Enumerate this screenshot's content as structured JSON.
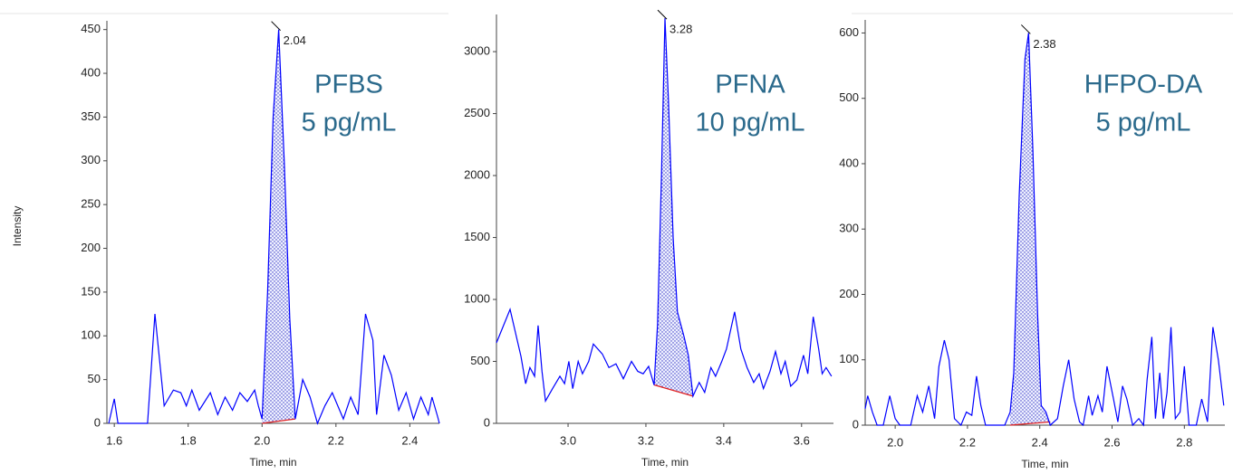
{
  "chart_data": [
    {
      "type": "line",
      "ylabel": "Intensity",
      "xlabel": "Time, min",
      "annotation": [
        "PFBS",
        "5 pg/mL"
      ],
      "x": [
        1.585,
        1.6,
        1.61,
        1.69,
        1.71,
        1.735,
        1.76,
        1.78,
        1.795,
        1.81,
        1.83,
        1.86,
        1.88,
        1.9,
        1.92,
        1.94,
        1.96,
        1.98,
        1.99,
        2.0,
        2.015,
        2.03,
        2.045,
        2.06,
        2.075,
        2.09,
        2.11,
        2.13,
        2.15,
        2.17,
        2.19,
        2.22,
        2.24,
        2.26,
        2.28,
        2.3,
        2.31,
        2.33,
        2.35,
        2.37,
        2.39,
        2.41,
        2.43,
        2.45,
        2.46,
        2.475,
        2.48
      ],
      "values": [
        0,
        28,
        0,
        0,
        125,
        20,
        38,
        35,
        20,
        38,
        15,
        35,
        10,
        30,
        15,
        35,
        25,
        38,
        20,
        5,
        150,
        350,
        450,
        300,
        120,
        5,
        50,
        30,
        0,
        20,
        35,
        5,
        30,
        10,
        125,
        95,
        10,
        78,
        55,
        15,
        35,
        5,
        30,
        10,
        30,
        8,
        0
      ],
      "color": "#0000ff",
      "peak": {
        "label": "2.04",
        "range": [
          2.0,
          2.09
        ],
        "baseline": [
          0,
          5
        ],
        "baseline_color": "#e02020"
      },
      "xlim": [
        1.58,
        2.48
      ],
      "ylim": [
        0,
        460
      ],
      "xticks": [
        1.6,
        1.8,
        {
          "value": 2,
          "label": "2.0"
        },
        2.2,
        2.4
      ],
      "yticks": [
        0,
        50,
        100,
        150,
        200,
        250,
        300,
        350,
        400,
        450
      ]
    },
    {
      "type": "line",
      "xlabel": "Time, min",
      "annotation": [
        "PFNA",
        "10 pg/mL"
      ],
      "x": [
        2.816,
        2.851,
        2.879,
        2.891,
        2.902,
        2.914,
        2.923,
        2.933,
        2.942,
        2.96,
        2.979,
        2.991,
        3.002,
        3.012,
        3.026,
        3.037,
        3.053,
        3.065,
        3.088,
        3.105,
        3.123,
        3.142,
        3.163,
        3.179,
        3.193,
        3.207,
        3.221,
        3.23,
        3.24,
        3.249,
        3.258,
        3.27,
        3.281,
        3.298,
        3.309,
        3.321,
        3.337,
        3.351,
        3.367,
        3.379,
        3.395,
        3.407,
        3.428,
        3.444,
        3.46,
        3.477,
        3.491,
        3.502,
        3.519,
        3.533,
        3.547,
        3.558,
        3.572,
        3.588,
        3.605,
        3.616,
        3.63,
        3.644,
        3.653,
        3.663,
        3.677
      ],
      "values": [
        650,
        920,
        540,
        320,
        450,
        380,
        790,
        420,
        180,
        280,
        380,
        320,
        500,
        280,
        500,
        400,
        500,
        640,
        560,
        450,
        480,
        360,
        500,
        420,
        400,
        460,
        310,
        800,
        2000,
        3270,
        2600,
        1500,
        900,
        700,
        550,
        220,
        330,
        250,
        450,
        380,
        500,
        600,
        900,
        600,
        450,
        330,
        400,
        280,
        420,
        580,
        400,
        500,
        300,
        350,
        550,
        400,
        860,
        600,
        400,
        450,
        380
      ],
      "color": "#0000ff",
      "peak": {
        "label": "3.28",
        "range": [
          3.221,
          3.321
        ],
        "baseline": [
          310,
          220
        ],
        "baseline_color": "#e02020"
      },
      "xlim": [
        2.816,
        3.682
      ],
      "ylim": [
        0,
        3300
      ],
      "xticks": [
        {
          "value": 3,
          "label": "3.0"
        },
        3.2,
        3.4,
        3.6
      ],
      "yticks": [
        0,
        500,
        1000,
        1500,
        2000,
        2500,
        3000
      ]
    },
    {
      "type": "line",
      "xlabel": "Time, min",
      "annotation": [
        "HFPO-DA",
        "5 pg/mL"
      ],
      "x": [
        1.917,
        1.924,
        1.937,
        1.95,
        1.967,
        1.985,
        2.0,
        2.013,
        2.043,
        2.061,
        2.076,
        2.093,
        2.109,
        2.121,
        2.136,
        2.149,
        2.164,
        2.182,
        2.197,
        2.212,
        2.225,
        2.237,
        2.25,
        2.283,
        2.303,
        2.318,
        2.328,
        2.343,
        2.359,
        2.369,
        2.381,
        2.394,
        2.404,
        2.417,
        2.429,
        2.449,
        2.465,
        2.48,
        2.495,
        2.51,
        2.52,
        2.535,
        2.545,
        2.561,
        2.573,
        2.586,
        2.604,
        2.616,
        2.629,
        2.641,
        2.657,
        2.674,
        2.687,
        2.697,
        2.71,
        2.72,
        2.732,
        2.742,
        2.752,
        2.763,
        2.775,
        2.788,
        2.8,
        2.813,
        2.833,
        2.848,
        2.864,
        2.879,
        2.894,
        2.909
      ],
      "values": [
        25,
        45,
        20,
        0,
        0,
        45,
        10,
        0,
        0,
        45,
        20,
        60,
        10,
        90,
        130,
        100,
        10,
        0,
        20,
        15,
        75,
        30,
        0,
        0,
        0,
        20,
        80,
        350,
        560,
        600,
        420,
        170,
        30,
        20,
        0,
        10,
        60,
        100,
        40,
        5,
        0,
        45,
        15,
        45,
        20,
        90,
        40,
        5,
        60,
        40,
        0,
        10,
        0,
        70,
        135,
        10,
        80,
        10,
        50,
        150,
        10,
        20,
        90,
        0,
        0,
        40,
        5,
        150,
        100,
        30
      ],
      "color": "#0000ff",
      "peak": {
        "label": "2.38",
        "range": [
          2.318,
          2.429
        ],
        "baseline": [
          0,
          5
        ],
        "baseline_color": "#e02020"
      },
      "xlim": [
        1.917,
        2.912
      ],
      "ylim": [
        0,
        620
      ],
      "xticks": [
        {
          "value": 2,
          "label": "2.0"
        },
        2.2,
        2.4,
        2.6,
        2.8
      ],
      "yticks": [
        0,
        100,
        200,
        300,
        400,
        500,
        600
      ]
    }
  ]
}
